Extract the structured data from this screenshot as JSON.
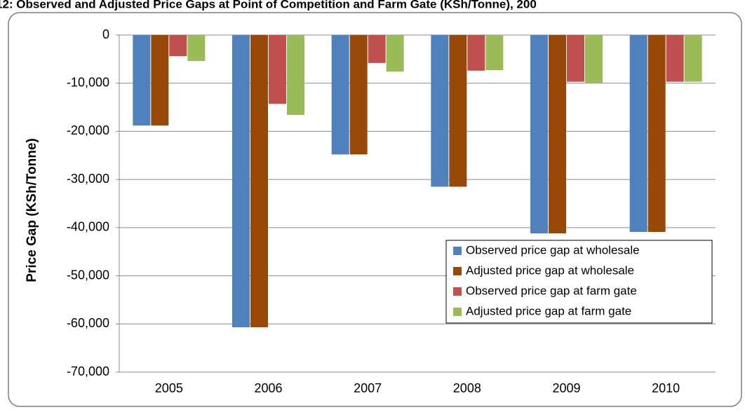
{
  "chart_data": {
    "type": "bar",
    "title": "12: Observed and Adjusted Price Gaps at Point of Competition and Farm Gate (KSh/Tonne), 200",
    "y_label": "Price Gap (KSh/Tonne)",
    "categories": [
      "2005",
      "2006",
      "2007",
      "2008",
      "2009",
      "2010"
    ],
    "series": [
      {
        "name": "Observed price gap at wholesale",
        "color": "#4f81bd",
        "values": [
          -18800,
          -60700,
          -24800,
          -31500,
          -41200,
          -40900
        ]
      },
      {
        "name": "Adjusted price gap at wholesale",
        "color": "#984807",
        "values": [
          -18800,
          -60700,
          -24800,
          -31500,
          -41200,
          -40900
        ]
      },
      {
        "name": "Observed price gap at farm gate",
        "color": "#c0504d",
        "values": [
          -4400,
          -14300,
          -5800,
          -7400,
          -9700,
          -9700
        ]
      },
      {
        "name": "Adjusted price gap at farm gate",
        "color": "#9bbb59",
        "values": [
          -5400,
          -16600,
          -7600,
          -7300,
          -9900,
          -9700
        ]
      }
    ],
    "ylim": [
      -70000,
      0
    ],
    "yticks": [
      0,
      {
        "value": -10000,
        "label": "-10,000"
      },
      {
        "value": -20000,
        "label": "-20,000"
      },
      {
        "value": -30000,
        "label": "-30,000"
      },
      {
        "value": -40000,
        "label": "-40,000"
      },
      {
        "value": -50000,
        "label": "-50,000"
      },
      {
        "value": -60000,
        "label": "-60,000"
      },
      {
        "value": -70000,
        "label": "-70,000"
      }
    ],
    "grid": true,
    "legend": "right"
  }
}
